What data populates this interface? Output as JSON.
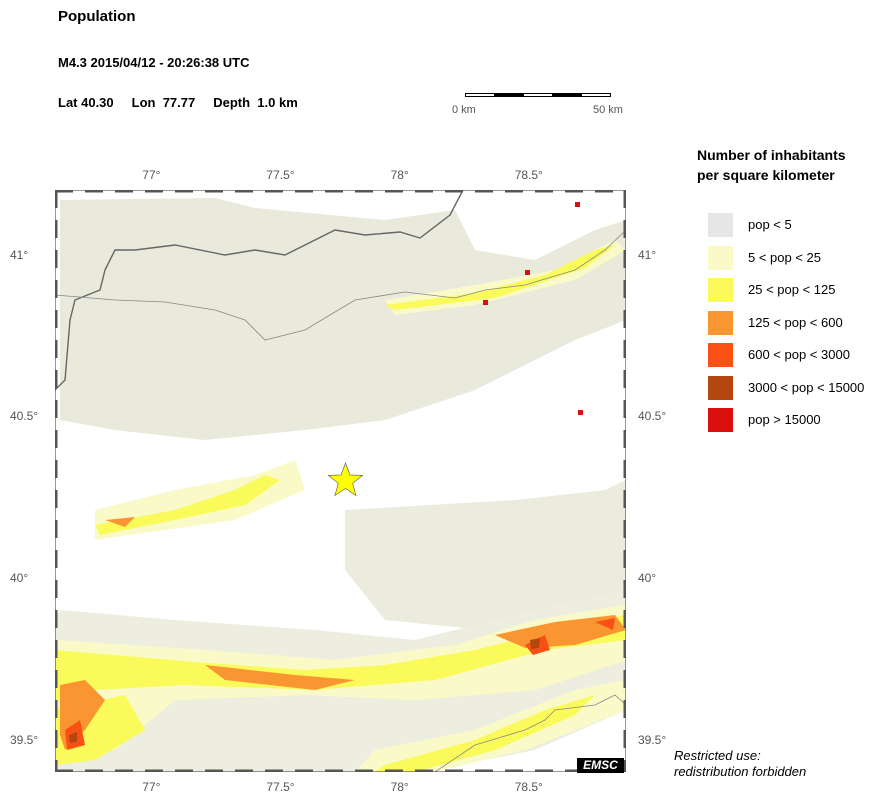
{
  "header": {
    "title": "Population",
    "event": "M4.3  2015/04/12 - 20:26:38 UTC",
    "lat": "Lat 40.30",
    "lon": "Lon  77.77",
    "depth": "Depth  1.0 km"
  },
  "scale_bar": {
    "start_label": "0 km",
    "end_label": "50 km"
  },
  "map": {
    "lon_range": [
      76.6,
      78.9
    ],
    "lat_range": [
      39.4,
      41.2
    ],
    "lon_ticks": [
      "77°",
      "77.5°",
      "78°",
      "78.5°"
    ],
    "lon_tick_values": [
      77.0,
      77.5,
      78.0,
      78.5
    ],
    "lat_ticks": [
      "41°",
      "40.5°",
      "40°",
      "39.5°"
    ],
    "lat_tick_values": [
      41.0,
      40.5,
      40.0,
      39.5
    ],
    "epicenter": {
      "lon": 77.77,
      "lat": 40.3,
      "marker": "star-icon",
      "color": "#ffff00"
    },
    "border_color": "#666666"
  },
  "legend": {
    "title_line1": "Number of inhabitants",
    "title_line2": "per square kilometer",
    "items": [
      {
        "label": "pop < 5",
        "color": "#e6e6e6"
      },
      {
        "label": "5 < pop < 25",
        "color": "#fafac8"
      },
      {
        "label": "25 < pop < 125",
        "color": "#fafa5a"
      },
      {
        "label": "125 < pop < 600",
        "color": "#fa9632"
      },
      {
        "label": "600 < pop < 3000",
        "color": "#fa5014"
      },
      {
        "label": "3000 < pop < 15000",
        "color": "#b4460f"
      },
      {
        "label": "pop > 15000",
        "color": "#dc0f0f"
      }
    ]
  },
  "footer": {
    "restricted_line1": "Restricted use:",
    "restricted_line2": "redistribution forbidden",
    "logo": "EMSC"
  }
}
